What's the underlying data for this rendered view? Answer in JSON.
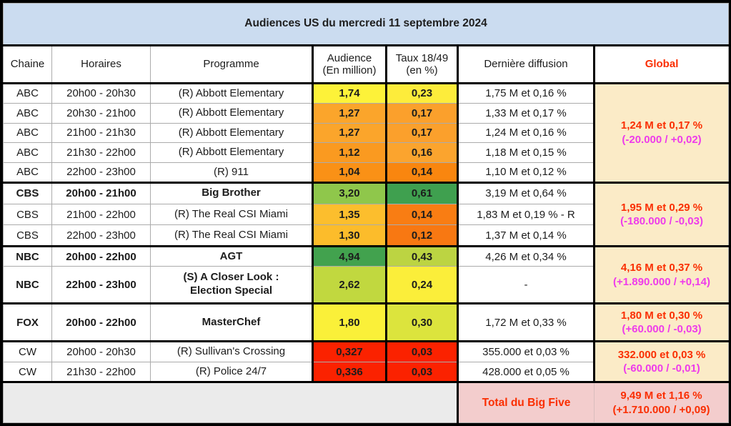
{
  "title": "Audiences US du mercredi 11 septembre 2024",
  "header": {
    "chaine": "Chaine",
    "horaires": "Horaires",
    "programme": "Programme",
    "audience_l1": "Audience",
    "audience_l2": "(En million)",
    "taux_l1": "Taux 18/49",
    "taux_l2": "(en %)",
    "derniere": "Dernière diffusion",
    "global": "Global"
  },
  "groups": [
    {
      "global": {
        "value": "1,24 M et 0,17 %",
        "delta": "(-20.000 / +0,02)"
      },
      "rows": [
        {
          "chaine": "ABC",
          "horaires": "20h00 - 20h30",
          "programme": "(R) Abbott Elementary",
          "audience": "1,74",
          "audience_color": "#fdf239",
          "taux": "0,23",
          "taux_color": "#fdec3b",
          "derniere": "1,75 M et 0,16 %"
        },
        {
          "chaine": "ABC",
          "horaires": "20h30 - 21h00",
          "programme": "(R) Abbott Elementary",
          "audience": "1,27",
          "audience_color": "#fba52b",
          "taux": "0,17",
          "taux_color": "#fba02c",
          "derniere": "1,33 M et 0,17 %"
        },
        {
          "chaine": "ABC",
          "horaires": "21h00 - 21h30",
          "programme": "(R) Abbott Elementary",
          "audience": "1,27",
          "audience_color": "#fba52b",
          "taux": "0,17",
          "taux_color": "#fba02c",
          "derniere": "1,24 M et 0,16 %"
        },
        {
          "chaine": "ABC",
          "horaires": "21h30 - 22h00",
          "programme": "(R) Abbott Elementary",
          "audience": "1,12",
          "audience_color": "#fa9a20",
          "taux": "0,16",
          "taux_color": "#fba42e",
          "derniere": "1,18 M et 0,15 %"
        },
        {
          "chaine": "ABC",
          "horaires": "22h00 - 23h00",
          "programme": "(R) 911",
          "audience": "1,04",
          "audience_color": "#fa9116",
          "taux": "0,14",
          "taux_color": "#f9860f",
          "derniere": "1,10 M et 0,12 %"
        }
      ]
    },
    {
      "global": {
        "value": "1,95 M et 0,29 %",
        "delta": "(-180.000 / -0,03)"
      },
      "rows": [
        {
          "chaine": "CBS",
          "horaires": "20h00 - 21h00",
          "programme": "Big Brother",
          "audience": "3,20",
          "audience_color": "#8fc74b",
          "taux": "0,61",
          "taux_color": "#3fa04f",
          "derniere": "3,19 M et 0,64 %"
        },
        {
          "chaine": "CBS",
          "horaires": "21h00 - 22h00",
          "programme": "(R) The Real CSI Miami",
          "audience": "1,35",
          "audience_color": "#fcbe2d",
          "taux": "0,14",
          "taux_color": "#f97d13",
          "derniere": "1,83 M et 0,19 % - R"
        },
        {
          "chaine": "CBS",
          "horaires": "22h00 - 23h00",
          "programme": "(R) The Real CSI Miami",
          "audience": "1,30",
          "audience_color": "#fcbc2b",
          "taux": "0,12",
          "taux_color": "#f87812",
          "derniere": "1,37 M et 0,14 %"
        }
      ]
    },
    {
      "global": {
        "value": "4,16 M et 0,37 %",
        "delta": "(+1.890.000 / +0,14)"
      },
      "rows": [
        {
          "chaine": "NBC",
          "horaires": "20h00 - 22h00",
          "programme": "AGT",
          "audience": "4,94",
          "audience_color": "#42a24e",
          "taux": "0,43",
          "taux_color": "#bcd442",
          "derniere": "4,26 M et 0,34 %"
        },
        {
          "chaine": "NBC",
          "horaires": "22h00 - 23h00",
          "programme": "(S) A Closer Look :\nElection Special",
          "audience": "2,62",
          "audience_color": "#c1d83f",
          "taux": "0,24",
          "taux_color": "#fbee3a",
          "derniere": "-"
        }
      ]
    },
    {
      "global": {
        "value": "1,80 M et 0,30 %",
        "delta": "(+60.000 / -0,03)"
      },
      "rows": [
        {
          "chaine": "FOX",
          "horaires": "20h00 - 22h00",
          "programme": "MasterChef",
          "audience": "1,80",
          "audience_color": "#faf039",
          "taux": "0,30",
          "taux_color": "#dce43d",
          "derniere": "1,72 M et 0,33 %"
        }
      ]
    },
    {
      "global": {
        "value": "332.000 et 0,03 %",
        "delta": "(-60.000 / -0,01)"
      },
      "rows": [
        {
          "chaine": "CW",
          "horaires": "20h00 - 20h30",
          "programme": "(R) Sullivan's Crossing",
          "audience": "0,327",
          "audience_color": "#fb2200",
          "taux": "0,03",
          "taux_color": "#fb2200",
          "derniere": "355.000 et 0,03 %"
        },
        {
          "chaine": "CW",
          "horaires": "21h30 - 22h00",
          "programme": "(R) Police 24/7",
          "audience": "0,336",
          "audience_color": "#fb2200",
          "taux": "0,03",
          "taux_color": "#fb2200",
          "derniere": "428.000 et 0,05 %"
        }
      ]
    }
  ],
  "total": {
    "label": "Total du Big Five",
    "value": "9,49 M et 1,16 %",
    "delta": "(+1.710.000 / +0,09)"
  },
  "colors": {
    "title_bg": "#cbdcf0",
    "global_bg": "#fbebc7",
    "total_bg": "#f3cdcd",
    "empty_bg": "#ebebeb",
    "red_text": "#fa2e01",
    "magenta_text": "#ee3beb"
  },
  "chart_data": {
    "type": "table",
    "title": "Audiences US du mercredi 11 septembre 2024",
    "columns": [
      "Chaine",
      "Horaires",
      "Programme",
      "Audience (En million)",
      "Taux 18/49 (en %)",
      "Dernière diffusion",
      "Global"
    ],
    "rows": [
      [
        "ABC",
        "20h00 - 20h30",
        "(R) Abbott Elementary",
        "1,74",
        "0,23",
        "1,75 M et 0,16 %",
        "1,24 M et 0,17 % (-20.000 / +0,02)"
      ],
      [
        "ABC",
        "20h30 - 21h00",
        "(R) Abbott Elementary",
        "1,27",
        "0,17",
        "1,33 M et 0,17 %",
        ""
      ],
      [
        "ABC",
        "21h00 - 21h30",
        "(R) Abbott Elementary",
        "1,27",
        "0,17",
        "1,24 M et 0,16 %",
        ""
      ],
      [
        "ABC",
        "21h30 - 22h00",
        "(R) Abbott Elementary",
        "1,12",
        "0,16",
        "1,18 M et 0,15 %",
        ""
      ],
      [
        "ABC",
        "22h00 - 23h00",
        "(R) 911",
        "1,04",
        "0,14",
        "1,10 M et 0,12 %",
        ""
      ],
      [
        "CBS",
        "20h00 - 21h00",
        "Big Brother",
        "3,20",
        "0,61",
        "3,19 M et 0,64 %",
        "1,95 M et 0,29 % (-180.000 / -0,03)"
      ],
      [
        "CBS",
        "21h00 - 22h00",
        "(R) The Real CSI Miami",
        "1,35",
        "0,14",
        "1,83 M et 0,19 % - R",
        ""
      ],
      [
        "CBS",
        "22h00 - 23h00",
        "(R) The Real CSI Miami",
        "1,30",
        "0,12",
        "1,37 M et 0,14 %",
        ""
      ],
      [
        "NBC",
        "20h00 - 22h00",
        "AGT",
        "4,94",
        "0,43",
        "4,26 M et 0,34 %",
        "4,16 M et 0,37 % (+1.890.000 / +0,14)"
      ],
      [
        "NBC",
        "22h00 - 23h00",
        "(S) A Closer Look : Election Special",
        "2,62",
        "0,24",
        "-",
        ""
      ],
      [
        "FOX",
        "20h00 - 22h00",
        "MasterChef",
        "1,80",
        "0,30",
        "1,72 M et 0,33 %",
        "1,80 M et 0,30 % (+60.000 / -0,03)"
      ],
      [
        "CW",
        "20h00 - 20h30",
        "(R) Sullivan's Crossing",
        "0,327",
        "0,03",
        "355.000 et 0,03 %",
        "332.000 et 0,03 % (-60.000 / -0,01)"
      ],
      [
        "CW",
        "21h30 - 22h00",
        "(R) Police 24/7",
        "0,336",
        "0,03",
        "428.000 et 0,05 %",
        ""
      ],
      [
        "",
        "",
        "",
        "",
        "",
        "Total du Big Five",
        "9,49 M et 1,16 % (+1.710.000 / +0,09)"
      ]
    ]
  }
}
